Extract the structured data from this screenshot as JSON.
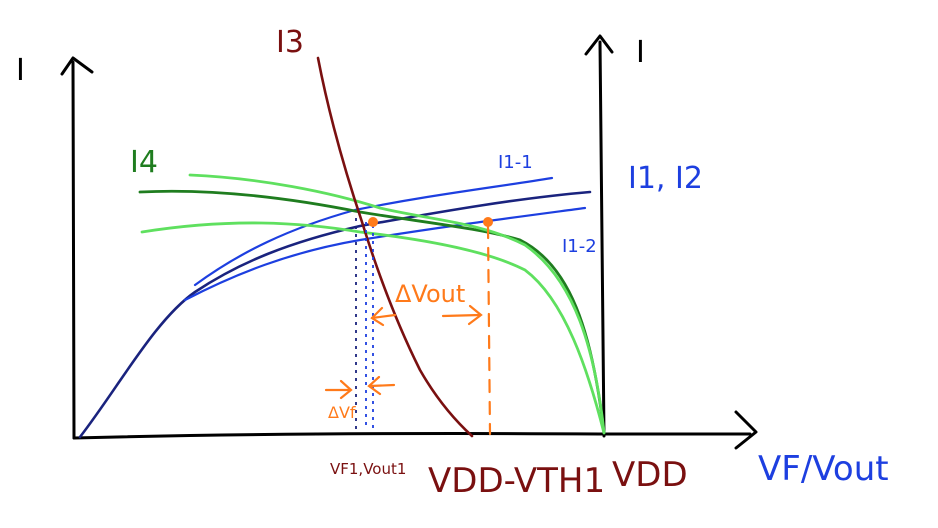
{
  "labels": {
    "i_left_axis": "I",
    "i_right_axis": "I",
    "i3": "I3",
    "i4": "I4",
    "i1_1": "I1-1",
    "i1_2": "I1-2",
    "i1_i2": "I1, I2",
    "delta_vout": "ΔVout",
    "delta_vf": "ΔVf",
    "vf_vout1": "VF1,Vout1",
    "vdd_vth1": "VDD-VTH1",
    "vdd": "VDD",
    "x_axis": "VF/Vout"
  },
  "colors": {
    "axis": "#000000",
    "i3": "#7a1010",
    "i4_dark": "#1f7d1f",
    "i4_light": "#5fe05f",
    "i1": "#1a237e",
    "i1_variants": "#1d3fe0",
    "annotation": "#ff7a1a"
  }
}
